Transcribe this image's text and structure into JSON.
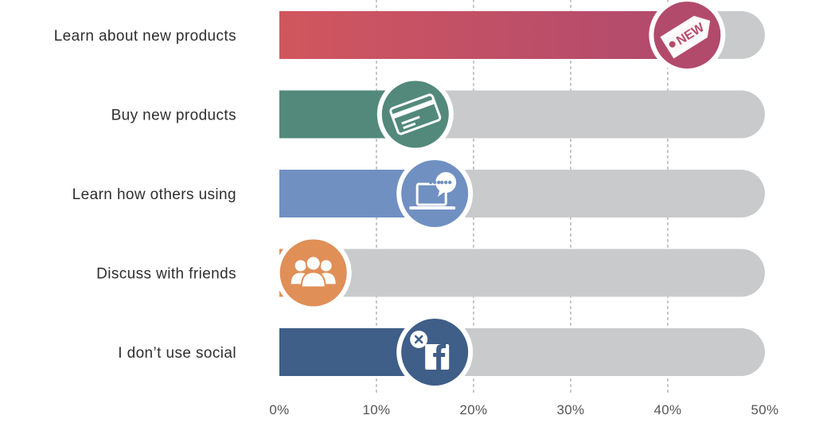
{
  "chart_data": {
    "type": "bar",
    "orientation": "horizontal",
    "categories": [
      "Learn about new products",
      "Buy new products",
      "Learn how others using",
      "Discuss with friends",
      "I don’t use social"
    ],
    "values": [
      42,
      14,
      16,
      3.5,
      16
    ],
    "colors": [
      "#c65060",
      "#52897b",
      "#7090c2",
      "#e08f57",
      "#3f5e88"
    ],
    "gradient": [
      [
        "#d1565e",
        "#b04a6e"
      ],
      null,
      null,
      null,
      null
    ],
    "icons": [
      "new-tag-icon",
      "credit-card-icon",
      "laptop-chat-icon",
      "group-people-icon",
      "facebook-x-icon"
    ],
    "track_color": "#c9cacc",
    "xlim": [
      0,
      50
    ],
    "xticks": [
      "0%",
      "10%",
      "20%",
      "30%",
      "40%",
      "50%"
    ],
    "gridlines": "dotted",
    "title": "",
    "xlabel": "",
    "ylabel": ""
  }
}
